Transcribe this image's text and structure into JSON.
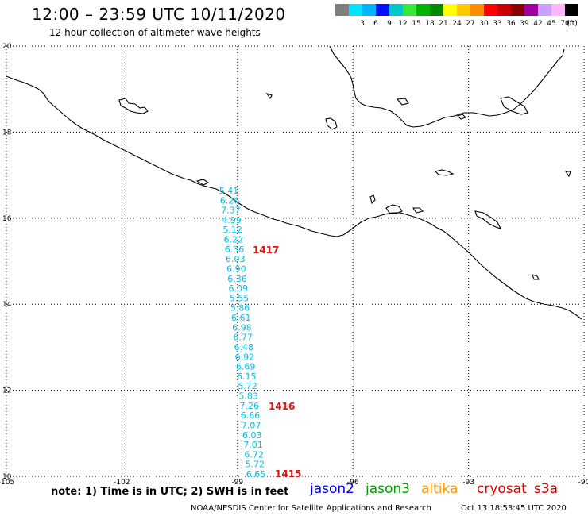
{
  "header": {
    "title": "12:00  –  23:59  UTC  10/11/2020",
    "subtitle": "12 hour collection of altimeter wave heights"
  },
  "legend": {
    "unit": "(ft)",
    "bins": [
      {
        "label": "",
        "color": "#7f7f7f"
      },
      {
        "label": "3",
        "color": "#00e5ff"
      },
      {
        "label": "6",
        "color": "#00b4ff"
      },
      {
        "label": "9",
        "color": "#0010ff"
      },
      {
        "label": "12",
        "color": "#00c8c8"
      },
      {
        "label": "15",
        "color": "#38e838"
      },
      {
        "label": "18",
        "color": "#00b400"
      },
      {
        "label": "21",
        "color": "#008800"
      },
      {
        "label": "24",
        "color": "#ffff00"
      },
      {
        "label": "27",
        "color": "#ffc800"
      },
      {
        "label": "30",
        "color": "#ff8c00"
      },
      {
        "label": "33",
        "color": "#ff0000"
      },
      {
        "label": "36",
        "color": "#c80000"
      },
      {
        "label": "39",
        "color": "#8c0000"
      },
      {
        "label": "42",
        "color": "#a000a0"
      },
      {
        "label": "45",
        "color": "#c8a0ff"
      },
      {
        "label": "70",
        "color": "#ffb4ff"
      },
      {
        "label": "",
        "color": "#000000"
      }
    ]
  },
  "map": {
    "lon_range": [
      -105,
      -90
    ],
    "lat_range": [
      10,
      20
    ],
    "lon_ticks": [
      "-105",
      "-102",
      "-99",
      "-96",
      "-93",
      "-90"
    ],
    "lat_ticks": [
      "20",
      "18",
      "16",
      "14",
      "12",
      "10"
    ],
    "track_color": "#00bfe6",
    "time_color": "#e01010",
    "wave_heights": [
      "5.41",
      "6.26",
      "7.37",
      "4.99",
      "5.12",
      "6.22",
      "6.36",
      "6.03",
      "6.90",
      "6.36",
      "6.09",
      "5.55",
      "5.86",
      "6.61",
      "6.98",
      "6.77",
      "6.48",
      "6.92",
      "6.69",
      "6.15",
      "5.72",
      "5.83",
      "7.26",
      "6.66",
      "7.07",
      "6.03",
      "7.01",
      "6.72",
      "5.72",
      "6.65"
    ],
    "pass_times": [
      "1417",
      "1416",
      "1415"
    ]
  },
  "footer": {
    "note": "note:  1)  Time  is  in  UTC;  2)  SWH  is  in  feet",
    "missions": [
      {
        "name": "jason2",
        "color": "#0000e0"
      },
      {
        "name": "jason3",
        "color": "#00a000"
      },
      {
        "name": "altika",
        "color": "#ff9900"
      },
      {
        "name": "cryosat",
        "color": "#e00000"
      },
      {
        "name": "s3a",
        "color": "#c00000"
      }
    ],
    "credit": "NOAA/NESDIS Center for Satellite Applications and Research",
    "timestamp": "Oct 13 18:53:45 UTC 2020"
  }
}
